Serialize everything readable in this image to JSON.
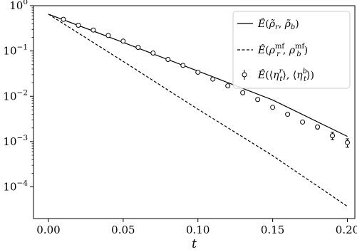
{
  "chart_data": {
    "type": "line",
    "xlabel": "t",
    "ylabel": "",
    "xlim": [
      -0.01,
      0.205
    ],
    "ylim": [
      2e-05,
      1.0
    ],
    "yscale": "log",
    "grid": false,
    "legend_position": "top-right",
    "x_ticks": [
      {
        "value": 0.0,
        "label": "0.00"
      },
      {
        "value": 0.05,
        "label": "0.05"
      },
      {
        "value": 0.1,
        "label": "0.10"
      },
      {
        "value": 0.15,
        "label": "0.15"
      },
      {
        "value": 0.2,
        "label": "0.20"
      }
    ],
    "y_ticks": [
      {
        "value": 1,
        "base": "10",
        "exp": "0"
      },
      {
        "value": 0.1,
        "base": "10",
        "exp": "−1"
      },
      {
        "value": 0.01,
        "base": "10",
        "exp": "−2"
      },
      {
        "value": 0.001,
        "base": "10",
        "exp": "−3"
      },
      {
        "value": 0.0001,
        "base": "10",
        "exp": "−4"
      }
    ],
    "series": [
      {
        "name": "Ê(ρ̃_r, ρ̃_b)",
        "style": "solid",
        "color": "#000000",
        "x": [
          0.0,
          0.05,
          0.1,
          0.15,
          0.2
        ],
        "y": [
          0.65,
          0.155,
          0.036,
          0.0083,
          0.0013
        ]
      },
      {
        "name": "Ê(ρ_r^mf, ρ_b^mf)",
        "style": "dashed",
        "color": "#000000",
        "x": [
          0.0,
          0.05,
          0.1,
          0.15,
          0.2
        ],
        "y": [
          0.65,
          0.059,
          0.0052,
          0.00049,
          3.7e-05
        ]
      },
      {
        "name": "Ê(⟨η_t^r⟩, ⟨η_t^b⟩)",
        "style": "markers",
        "marker": "open-circle",
        "color": "#000000",
        "x": [
          0.01,
          0.02,
          0.03,
          0.04,
          0.05,
          0.06,
          0.07,
          0.08,
          0.09,
          0.1,
          0.11,
          0.12,
          0.13,
          0.14,
          0.15,
          0.16,
          0.17,
          0.18,
          0.19,
          0.2
        ],
        "y": [
          0.5,
          0.37,
          0.29,
          0.22,
          0.165,
          0.12,
          0.09,
          0.065,
          0.048,
          0.034,
          0.024,
          0.017,
          0.012,
          0.0085,
          0.0057,
          0.004,
          0.0027,
          0.0021,
          0.00135,
          0.00095
        ],
        "yerr": [
          0.01,
          0.008,
          0.006,
          0.005,
          0.004,
          0.003,
          0.002,
          0.0015,
          0.001,
          0.0008,
          0.0006,
          0.0004,
          0.0003,
          0.0002,
          0.00015,
          0.0001,
          0.0001,
          0.0002,
          0.00025,
          0.0002
        ]
      }
    ]
  }
}
